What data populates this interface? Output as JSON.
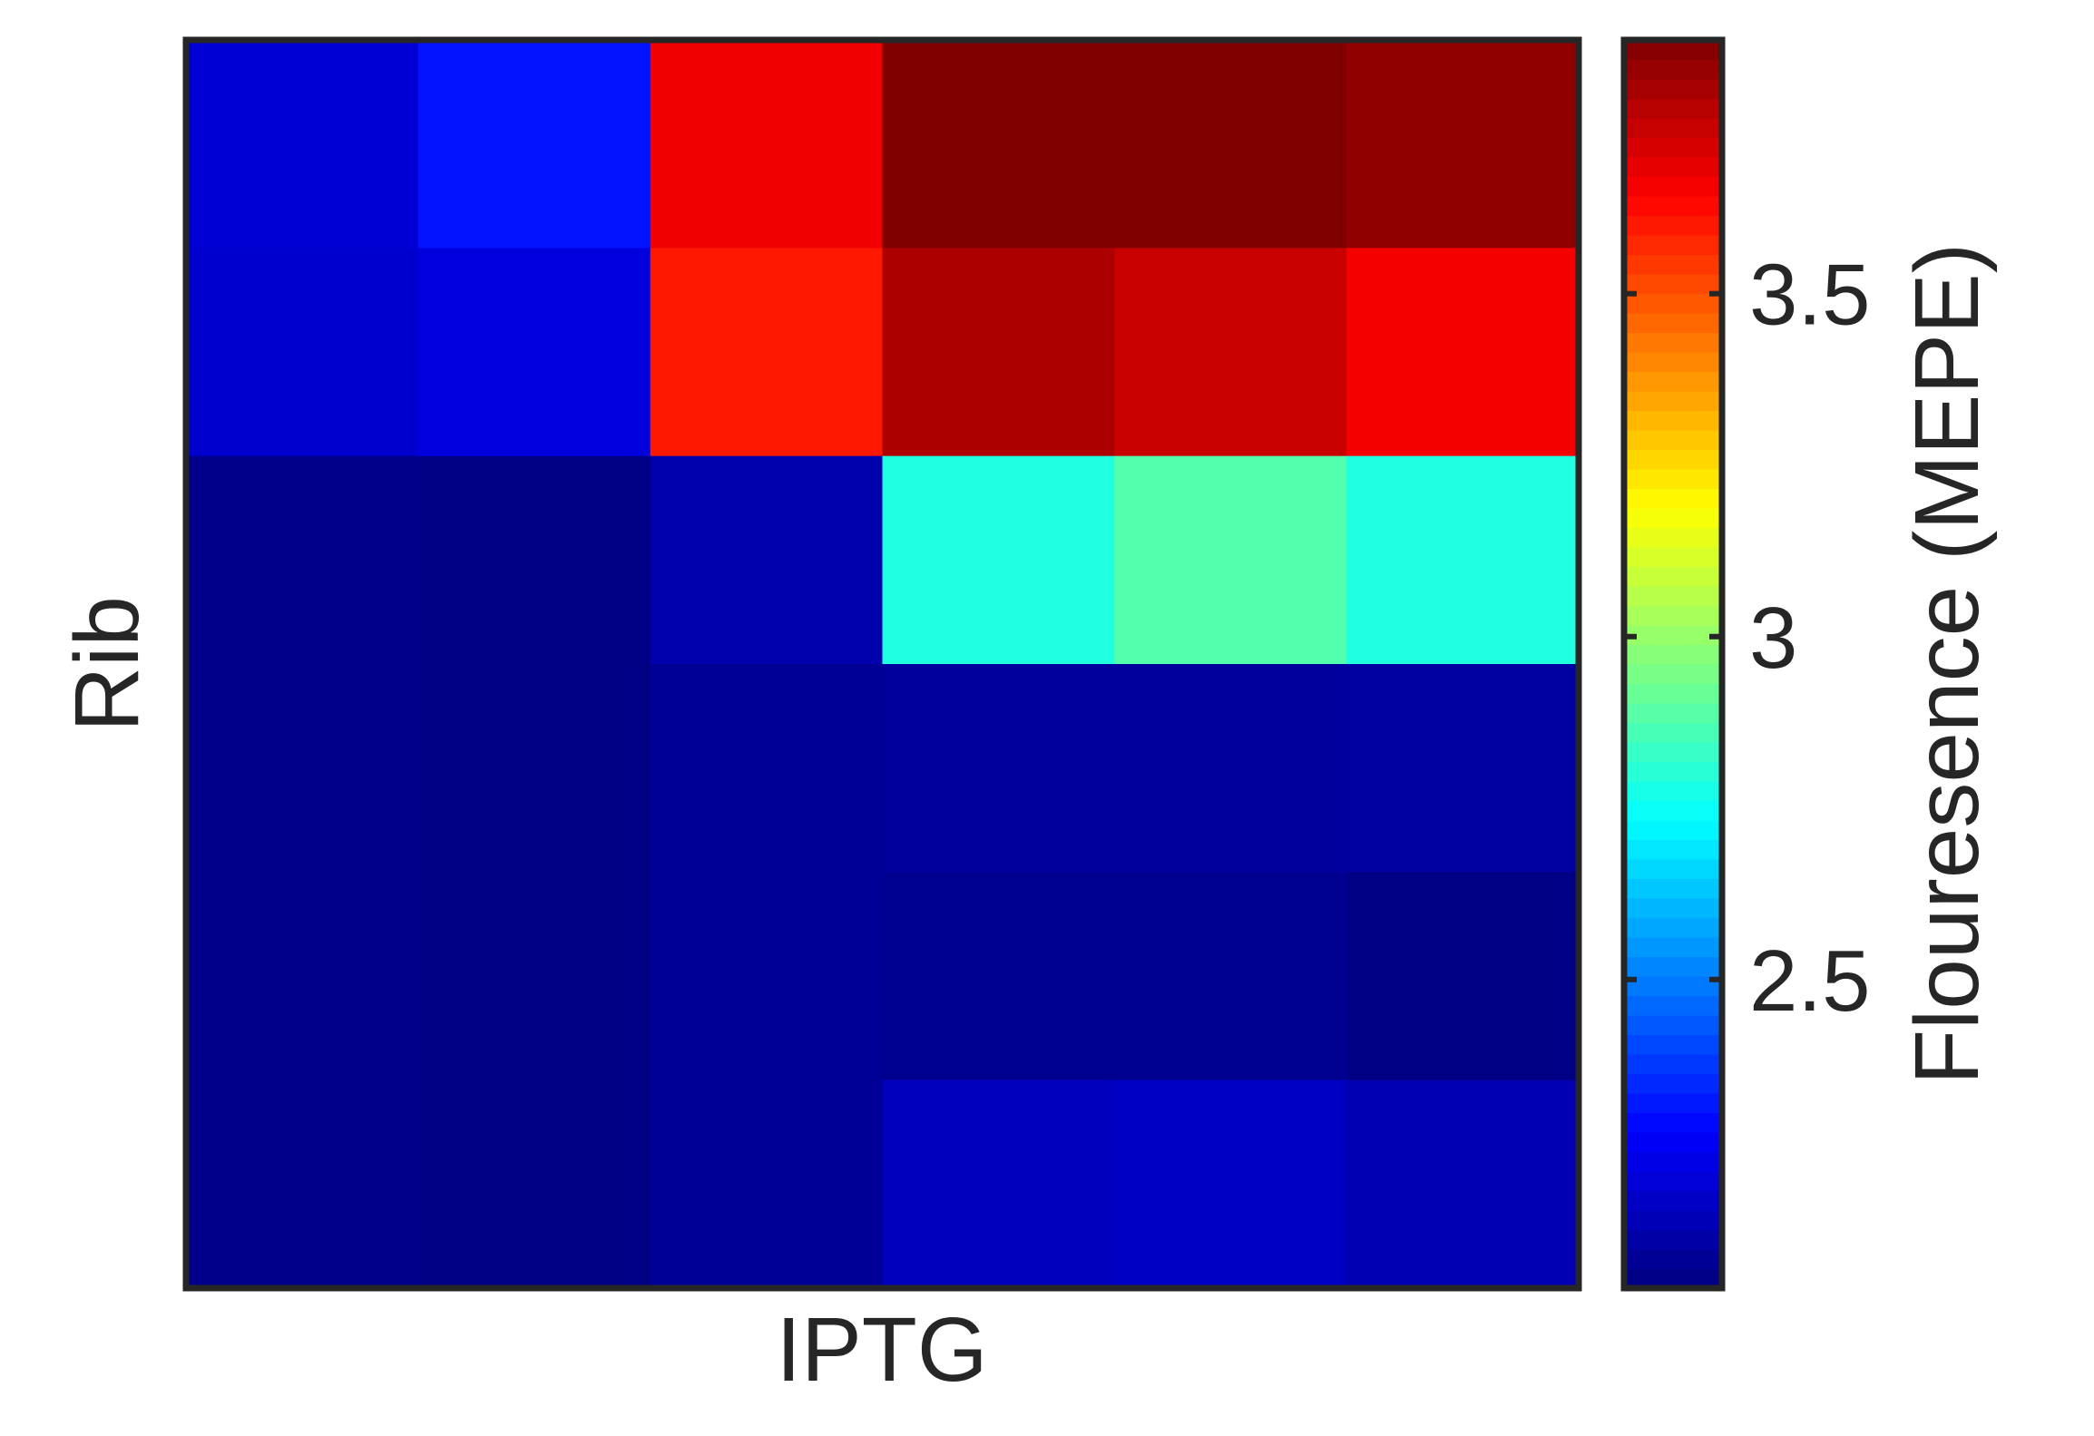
{
  "chart_data": {
    "type": "heatmap",
    "xlabel": "IPTG",
    "ylabel": "Rib",
    "n_rows": 6,
    "n_cols": 6,
    "values": [
      [
        2.2,
        2.31,
        3.67,
        3.87,
        3.87,
        3.84
      ],
      [
        2.19,
        2.22,
        3.6,
        3.79,
        3.74,
        3.66
      ],
      [
        2.07,
        2.06,
        2.13,
        2.79,
        2.88,
        2.79
      ],
      [
        2.07,
        2.06,
        2.09,
        2.1,
        2.1,
        2.11
      ],
      [
        2.07,
        2.06,
        2.09,
        2.08,
        2.08,
        2.06
      ],
      [
        2.07,
        2.06,
        2.09,
        2.16,
        2.17,
        2.14
      ]
    ],
    "colormap": "jet",
    "clim": [
      2.05,
      3.87
    ],
    "colorbar": {
      "label": "Flouresence (MEPE)",
      "ticks": [
        2.5,
        3,
        3.5
      ],
      "tick_labels": [
        "2.5",
        "3",
        "3.5"
      ]
    },
    "grid": false,
    "axis_color": "#262626"
  }
}
